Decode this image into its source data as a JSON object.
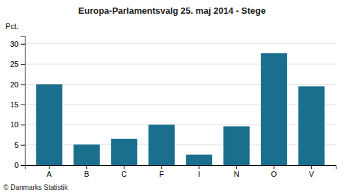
{
  "chart_data": {
    "type": "bar",
    "title": "Europa-Parlamentsvalg 25. maj 2014 - Stege",
    "categories": [
      "A",
      "B",
      "C",
      "F",
      "I",
      "N",
      "O",
      "V"
    ],
    "values": [
      20.0,
      5.1,
      6.5,
      10.0,
      2.6,
      9.6,
      27.7,
      19.5
    ],
    "color": "#1a6e8e",
    "ylabel": "Pct.",
    "ylim": [
      0,
      32
    ],
    "yticks": [
      0,
      5,
      10,
      15,
      20,
      25,
      30
    ],
    "grid": true,
    "annotations": [
      "© Danmarks Statistik"
    ]
  }
}
